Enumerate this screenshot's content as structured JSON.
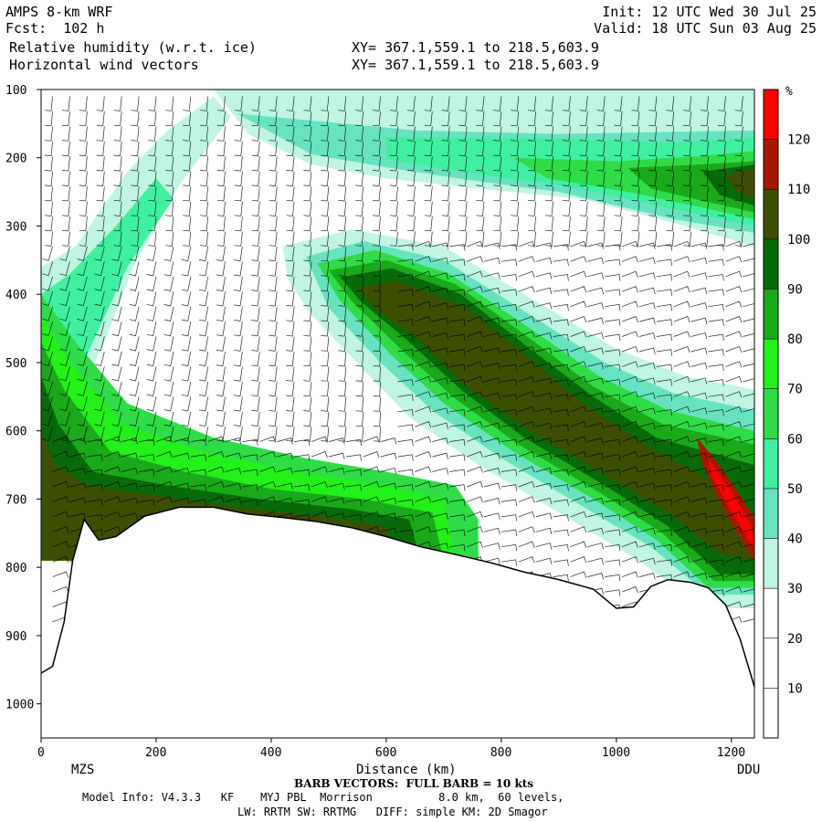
{
  "header": {
    "model": "AMPS 8-km WRF",
    "fcst": "Fcst:  102 h",
    "init": "Init: 12 UTC Wed 30 Jul 25",
    "valid": "Valid: 18 UTC Sun 03 Aug 25",
    "field1": "Relative humidity (w.r.t. ice)",
    "field2": "Horizontal wind vectors",
    "xy1": "XY= 367.1,559.1 to 218.5,603.9",
    "xy2": "XY= 367.1,559.1 to 218.5,603.9"
  },
  "footer": {
    "barb": "BARB VECTORS:  FULL BARB = 10 kts",
    "model_info": "Model Info: V4.3.3   KF    MYJ PBL  Morrison          8.0 km,  60 levels,",
    "physics": "LW: RRTM SW: RRTMG   DIFF: simple KM: 2D Smagor"
  },
  "colors": {
    "c0_30": "#ffffff",
    "c30_40": "#bff5e2",
    "c40_50": "#67e3c0",
    "c50_60": "#40f0a0",
    "c60_70": "#2fdc48",
    "c70_80": "#22f018",
    "c80_90": "#1aa91a",
    "c90_100": "#086a0a",
    "c100_110": "#3d4f02",
    "c110_120": "#a81800",
    "c120_plus": "#ff0000",
    "terrain_line": "#000000"
  },
  "chart_data": {
    "type": "heatmap",
    "title": "Relative humidity (w.r.t. ice)",
    "xlabel": "Distance (km)",
    "ylabel": "",
    "x_ticks": [
      "0",
      "200",
      "400",
      "600",
      "800",
      "1000",
      "1200"
    ],
    "y_ticks": [
      "100",
      "200",
      "300",
      "400",
      "500",
      "600",
      "700",
      "800",
      "900",
      "1000"
    ],
    "xlim": [
      0,
      1240
    ],
    "ylim": [
      100,
      1050
    ],
    "y_axis_reversed": true,
    "endpoints": {
      "left": "MZS",
      "right": "DDU"
    },
    "colorbar": {
      "unit": "%",
      "levels": [
        10,
        20,
        30,
        40,
        50,
        60,
        70,
        80,
        90,
        100,
        110,
        120
      ],
      "tick_labels": [
        "10",
        "20",
        "30",
        "40",
        "50",
        "60",
        "70",
        "80",
        "90",
        "100",
        "110",
        "120"
      ]
    },
    "terrain_surface_hpa": {
      "x": [
        0,
        20,
        40,
        55,
        75,
        100,
        130,
        180,
        240,
        300,
        360,
        420,
        480,
        540,
        600,
        660,
        720,
        780,
        840,
        900,
        960,
        1000,
        1030,
        1060,
        1090,
        1130,
        1160,
        1190,
        1215,
        1240
      ],
      "p": [
        955,
        945,
        880,
        790,
        730,
        760,
        755,
        725,
        712,
        712,
        722,
        727,
        733,
        742,
        755,
        770,
        781,
        793,
        807,
        818,
        832,
        860,
        858,
        828,
        818,
        822,
        830,
        855,
        905,
        975
      ]
    },
    "rh_features": [
      {
        "name": "lower-tropospheric moist layer",
        "x_range": [
          0,
          640
        ],
        "p_range": [
          650,
          760
        ],
        "rh": "90-110"
      },
      {
        "name": "slanted ice-supersaturated band",
        "x_range": [
          430,
          1240
        ],
        "p_range": [
          340,
          790
        ],
        "rh": "100-120+"
      },
      {
        "name": "upper moist band",
        "x_range": [
          150,
          1240
        ],
        "p_range": [
          100,
          330
        ],
        "rh": "40-110"
      },
      {
        "name": "dry slot",
        "x_range": [
          220,
          1000
        ],
        "p_range": [
          130,
          700
        ],
        "rh": "0-30"
      }
    ],
    "barb_note": "BARB VECTORS:  FULL BARB = 10 kts"
  }
}
